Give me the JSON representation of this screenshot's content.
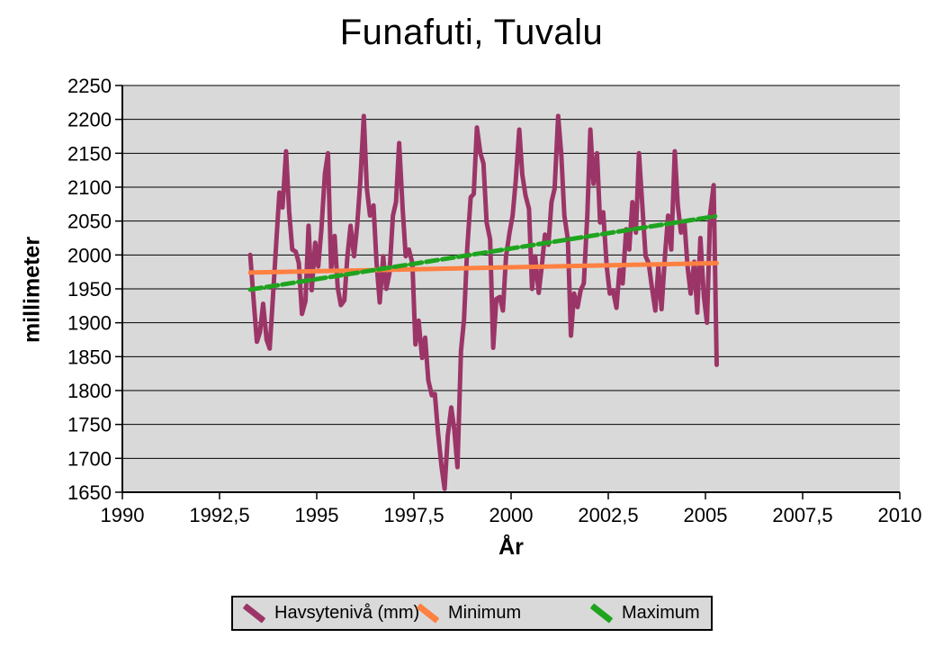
{
  "chart_data": {
    "type": "line",
    "title": "Funafuti, Tuvalu",
    "xlabel": "År",
    "ylabel": "millimeter",
    "xlim": [
      1990,
      2010
    ],
    "ylim": [
      1650,
      2250
    ],
    "grid": "horizontal",
    "plot_bg": "#d9d9d9",
    "gridline_color": "#000000",
    "legend_position": "bottom",
    "x_ticks": [
      {
        "v": 1990,
        "label": "1990"
      },
      {
        "v": 1992.5,
        "label": "1992,5"
      },
      {
        "v": 1995,
        "label": "1995"
      },
      {
        "v": 1997.5,
        "label": "1997,5"
      },
      {
        "v": 2000,
        "label": "2000"
      },
      {
        "v": 2002.5,
        "label": "2002,5"
      },
      {
        "v": 2005,
        "label": "2005"
      },
      {
        "v": 2007.5,
        "label": "2007,5"
      },
      {
        "v": 2010,
        "label": "2010"
      }
    ],
    "y_ticks": [
      {
        "v": 1650,
        "label": "1650"
      },
      {
        "v": 1700,
        "label": "1700"
      },
      {
        "v": 1750,
        "label": "1750"
      },
      {
        "v": 1800,
        "label": "1800"
      },
      {
        "v": 1850,
        "label": "1850"
      },
      {
        "v": 1900,
        "label": "1900"
      },
      {
        "v": 1950,
        "label": "1950"
      },
      {
        "v": 2000,
        "label": "2000"
      },
      {
        "v": 2050,
        "label": "2050"
      },
      {
        "v": 2100,
        "label": "2100"
      },
      {
        "v": 2150,
        "label": "2150"
      },
      {
        "v": 2200,
        "label": "2200"
      },
      {
        "v": 2250,
        "label": "2250"
      }
    ],
    "series": [
      {
        "name": "Havsytenivå (mm)",
        "color": "#9c3567",
        "style": "solid",
        "width": 5,
        "points": [
          [
            1993.29,
            2000
          ],
          [
            1993.37,
            1938
          ],
          [
            1993.46,
            1872
          ],
          [
            1993.54,
            1886
          ],
          [
            1993.62,
            1928
          ],
          [
            1993.71,
            1875
          ],
          [
            1993.79,
            1862
          ],
          [
            1993.87,
            1935
          ],
          [
            1993.96,
            2020
          ],
          [
            1994.04,
            2092
          ],
          [
            1994.12,
            2070
          ],
          [
            1994.21,
            2153
          ],
          [
            1994.29,
            2065
          ],
          [
            1994.37,
            2008
          ],
          [
            1994.46,
            2005
          ],
          [
            1994.54,
            1988
          ],
          [
            1994.62,
            1913
          ],
          [
            1994.71,
            1932
          ],
          [
            1994.79,
            2043
          ],
          [
            1994.87,
            1948
          ],
          [
            1994.96,
            2018
          ],
          [
            1995.04,
            1983
          ],
          [
            1995.12,
            2038
          ],
          [
            1995.21,
            2120
          ],
          [
            1995.29,
            2150
          ],
          [
            1995.37,
            1978
          ],
          [
            1995.46,
            2028
          ],
          [
            1995.54,
            1952
          ],
          [
            1995.62,
            1926
          ],
          [
            1995.71,
            1933
          ],
          [
            1995.79,
            1998
          ],
          [
            1995.87,
            2043
          ],
          [
            1995.96,
            1998
          ],
          [
            1996.04,
            2043
          ],
          [
            1996.12,
            2108
          ],
          [
            1996.21,
            2205
          ],
          [
            1996.29,
            2098
          ],
          [
            1996.37,
            2058
          ],
          [
            1996.46,
            2073
          ],
          [
            1996.54,
            1988
          ],
          [
            1996.62,
            1930
          ],
          [
            1996.71,
            1998
          ],
          [
            1996.79,
            1950
          ],
          [
            1996.87,
            1973
          ],
          [
            1996.96,
            2058
          ],
          [
            1997.04,
            2078
          ],
          [
            1997.12,
            2165
          ],
          [
            1997.21,
            2068
          ],
          [
            1997.29,
            1998
          ],
          [
            1997.37,
            2008
          ],
          [
            1997.46,
            1988
          ],
          [
            1997.54,
            1868
          ],
          [
            1997.62,
            1903
          ],
          [
            1997.71,
            1848
          ],
          [
            1997.79,
            1878
          ],
          [
            1997.87,
            1815
          ],
          [
            1997.96,
            1793
          ],
          [
            1998.04,
            1795
          ],
          [
            1998.12,
            1738
          ],
          [
            1998.21,
            1688
          ],
          [
            1998.29,
            1655
          ],
          [
            1998.37,
            1733
          ],
          [
            1998.46,
            1775
          ],
          [
            1998.54,
            1742
          ],
          [
            1998.62,
            1687
          ],
          [
            1998.71,
            1858
          ],
          [
            1998.79,
            1905
          ],
          [
            1998.87,
            2008
          ],
          [
            1998.96,
            2085
          ],
          [
            1999.04,
            2090
          ],
          [
            1999.12,
            2188
          ],
          [
            1999.21,
            2150
          ],
          [
            1999.29,
            2135
          ],
          [
            1999.37,
            2048
          ],
          [
            1999.46,
            2023
          ],
          [
            1999.54,
            1863
          ],
          [
            1999.62,
            1935
          ],
          [
            1999.71,
            1938
          ],
          [
            1999.79,
            1918
          ],
          [
            1999.87,
            1998
          ],
          [
            1999.96,
            2033
          ],
          [
            2000.04,
            2058
          ],
          [
            2000.12,
            2110
          ],
          [
            2000.21,
            2185
          ],
          [
            2000.29,
            2118
          ],
          [
            2000.37,
            2088
          ],
          [
            2000.46,
            2068
          ],
          [
            2000.54,
            1950
          ],
          [
            2000.62,
            1998
          ],
          [
            2000.71,
            1944
          ],
          [
            2000.79,
            1983
          ],
          [
            2000.87,
            2030
          ],
          [
            2000.96,
            2015
          ],
          [
            2001.04,
            2078
          ],
          [
            2001.12,
            2098
          ],
          [
            2001.21,
            2205
          ],
          [
            2001.29,
            2150
          ],
          [
            2001.37,
            2058
          ],
          [
            2001.46,
            2023
          ],
          [
            2001.54,
            1881
          ],
          [
            2001.62,
            1943
          ],
          [
            2001.71,
            1923
          ],
          [
            2001.79,
            1948
          ],
          [
            2001.87,
            1958
          ],
          [
            2001.96,
            2058
          ],
          [
            2002.04,
            2185
          ],
          [
            2002.12,
            2105
          ],
          [
            2002.21,
            2150
          ],
          [
            2002.29,
            2048
          ],
          [
            2002.37,
            2063
          ],
          [
            2002.46,
            1983
          ],
          [
            2002.54,
            1943
          ],
          [
            2002.62,
            1948
          ],
          [
            2002.71,
            1922
          ],
          [
            2002.79,
            1978
          ],
          [
            2002.87,
            1958
          ],
          [
            2002.96,
            2038
          ],
          [
            2003.04,
            2008
          ],
          [
            2003.12,
            2078
          ],
          [
            2003.21,
            2033
          ],
          [
            2003.29,
            2150
          ],
          [
            2003.37,
            2078
          ],
          [
            2003.46,
            1998
          ],
          [
            2003.54,
            1988
          ],
          [
            2003.62,
            1953
          ],
          [
            2003.71,
            1918
          ],
          [
            2003.79,
            1983
          ],
          [
            2003.87,
            1920
          ],
          [
            2003.96,
            2000
          ],
          [
            2004.04,
            2058
          ],
          [
            2004.12,
            2008
          ],
          [
            2004.21,
            2153
          ],
          [
            2004.29,
            2073
          ],
          [
            2004.37,
            2033
          ],
          [
            2004.46,
            2048
          ],
          [
            2004.54,
            1983
          ],
          [
            2004.62,
            1943
          ],
          [
            2004.71,
            1990
          ],
          [
            2004.79,
            1915
          ],
          [
            2004.87,
            2025
          ],
          [
            2004.96,
            1938
          ],
          [
            2005.04,
            1900
          ],
          [
            2005.12,
            2060
          ],
          [
            2005.21,
            2103
          ],
          [
            2005.29,
            1838
          ]
        ]
      },
      {
        "name": "Minimum",
        "color": "#ff8040",
        "style": "solid",
        "width": 5,
        "points": [
          [
            1993.29,
            1974
          ],
          [
            2005.29,
            1988
          ]
        ]
      },
      {
        "name": "Maximum",
        "color": "#1fa41f",
        "style": "dashed",
        "width": 5,
        "points": [
          [
            1993.29,
            1949
          ],
          [
            2005.25,
            2057
          ]
        ]
      }
    ]
  }
}
